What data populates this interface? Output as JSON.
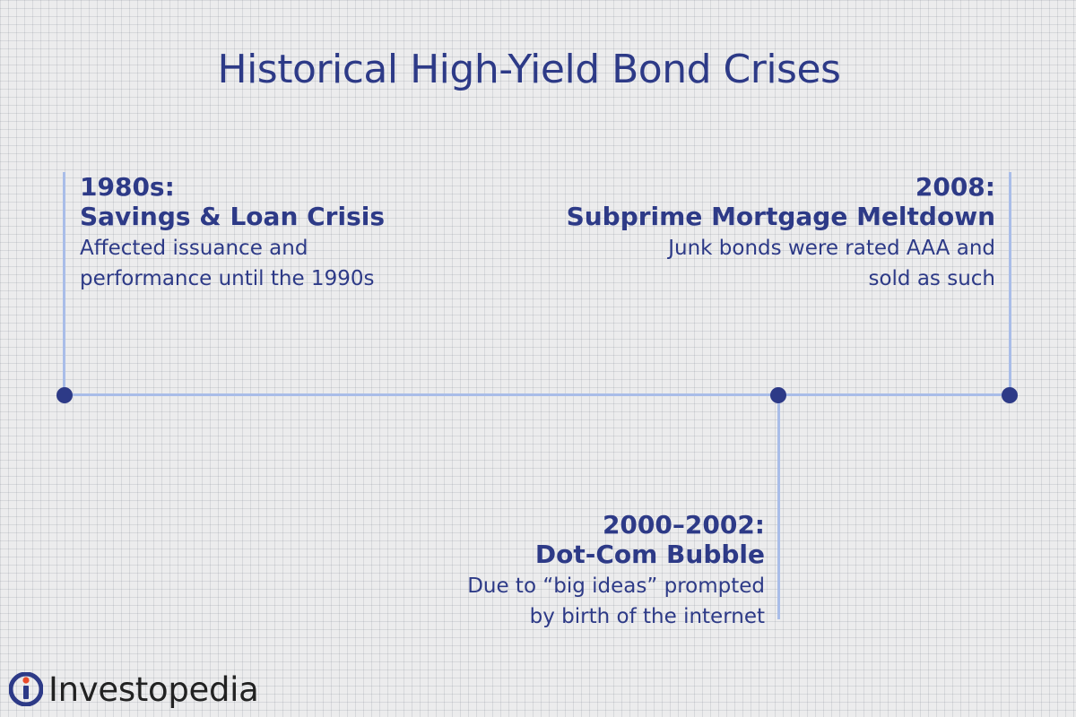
{
  "title": "Historical High-Yield Bond Crises",
  "colors": {
    "text": "#2d3a87",
    "line": "#a9bde8",
    "dot": "#2d3a87",
    "logo_mark": "#2d3a87",
    "logo_dot": "#ea4a2a",
    "logo_text": "#222222"
  },
  "events": [
    {
      "date": "1980s:",
      "name": "Savings & Loan Crisis",
      "description": [
        "Affected issuance and",
        "performance until the 1990s"
      ]
    },
    {
      "date": "2008:",
      "name": "Subprime Mortgage Meltdown",
      "description": [
        "Junk bonds were rated AAA and",
        "sold as such"
      ]
    },
    {
      "date": "2000–2002:",
      "name": "Dot-Com Bubble",
      "description": [
        "Due to “big ideas” prompted",
        "by birth of the internet"
      ]
    }
  ],
  "logo": {
    "text": "Investopedia",
    "icon": "investopedia-logo-icon"
  }
}
